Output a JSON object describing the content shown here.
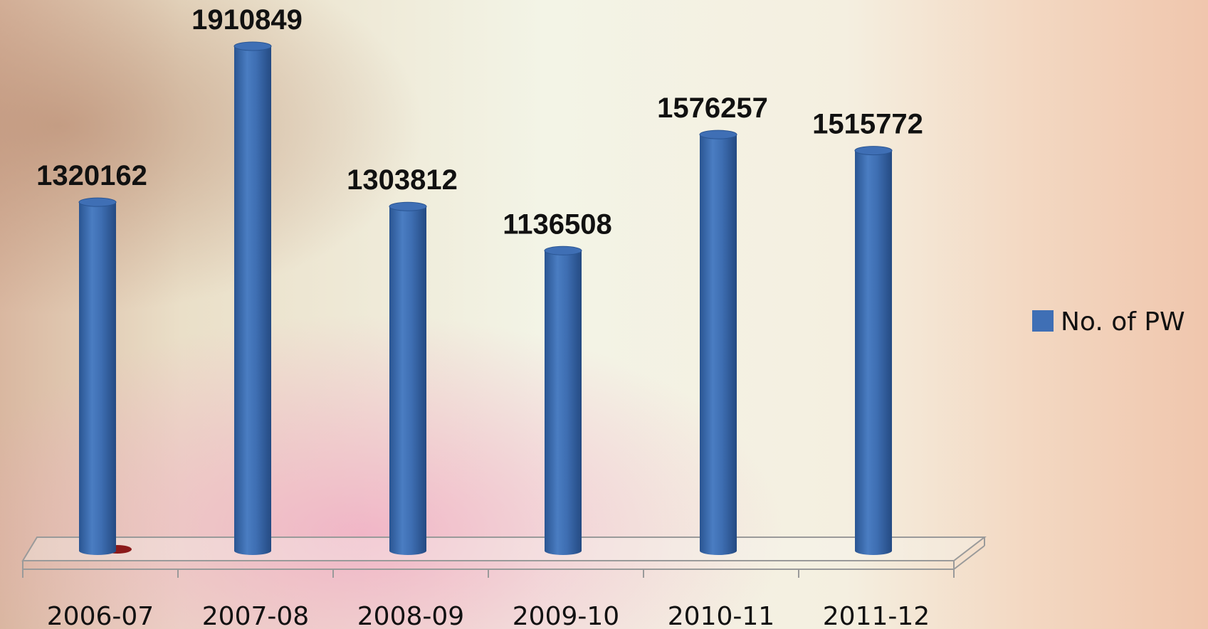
{
  "chart_data": {
    "type": "bar",
    "categories": [
      "2006-07",
      "2007-08",
      "2008-09",
      "2009-10",
      "2010-11",
      "2011-12"
    ],
    "series": [
      {
        "name": "No. of PW",
        "color": "#3f6fb5",
        "values": [
          1320162,
          1910849,
          1303812,
          1136508,
          1576257,
          1515772
        ]
      }
    ],
    "legend": "right"
  }
}
